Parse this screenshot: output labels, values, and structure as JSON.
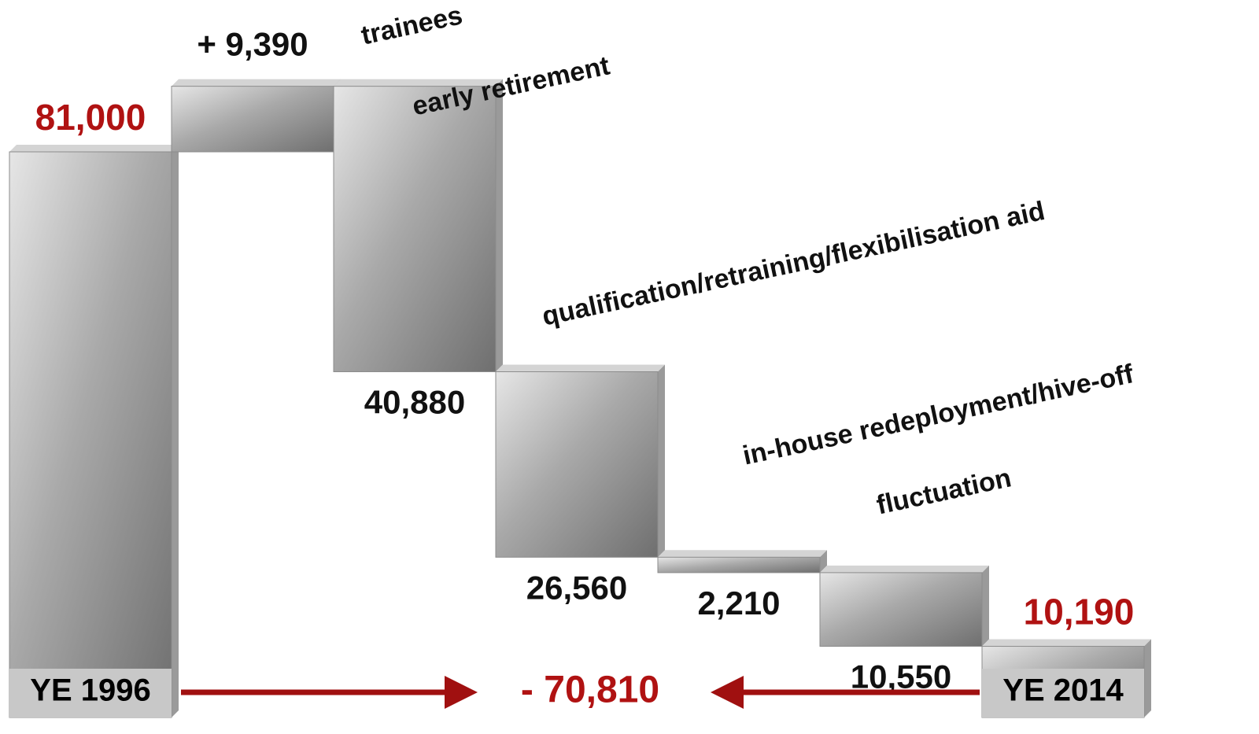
{
  "chart_data": {
    "type": "waterfall",
    "categories": [
      "YE 1996",
      "trainees",
      "early retirement",
      "qualification/retraining/flexibilisation aid",
      "in-house redeployment/hive-off",
      "fluctuation",
      "YE 2014"
    ],
    "values": [
      81000,
      9390,
      -40880,
      -26560,
      -2210,
      -10550,
      10190
    ],
    "value_labels": [
      "81,000",
      "+ 9,390",
      "40,880",
      "26,560",
      "2,210",
      "10,550",
      "10,190"
    ],
    "total": {
      "value": -70810,
      "label": "- 70,810"
    },
    "highlight_color": "#b01212",
    "bar_color": "#8c8c8c"
  }
}
